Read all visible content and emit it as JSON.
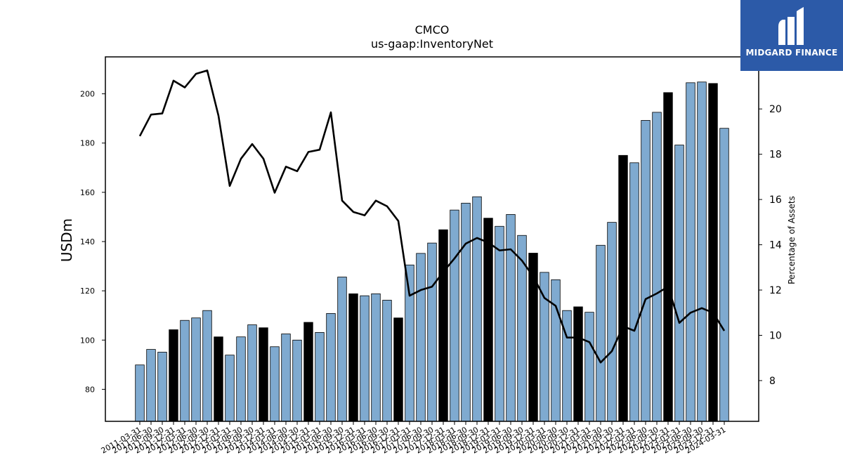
{
  "chart_data": {
    "type": "bar",
    "title": "CMCO",
    "subtitle": "us-gaap:InventoryNet",
    "ylabel": "USDm",
    "y2label": "Percentage of Assets",
    "ylim": [
      67,
      215
    ],
    "y2lim": [
      6.2,
      22.3
    ],
    "yticks": [
      80,
      100,
      120,
      140,
      160,
      180,
      200
    ],
    "y2ticks": [
      8,
      10,
      12,
      14,
      16,
      18,
      20
    ],
    "grid": false,
    "colors": {
      "bar": "#7faad0",
      "bar_highlight": "#000000",
      "line": "#000000"
    },
    "categories": [
      "2011-03-31",
      "2011-06-30",
      "2011-09-30",
      "2011-12-31",
      "2012-03-31",
      "2012-06-30",
      "2012-09-30",
      "2012-12-31",
      "2013-03-31",
      "2013-06-30",
      "2013-09-30",
      "2013-12-31",
      "2014-03-31",
      "2014-06-30",
      "2014-09-30",
      "2014-12-31",
      "2015-03-31",
      "2015-06-30",
      "2015-09-30",
      "2015-12-31",
      "2016-03-31",
      "2016-06-30",
      "2016-09-30",
      "2016-12-31",
      "2017-03-31",
      "2017-06-30",
      "2017-09-30",
      "2017-12-31",
      "2018-03-31",
      "2018-06-30",
      "2018-09-30",
      "2018-12-31",
      "2019-03-31",
      "2019-06-30",
      "2019-09-30",
      "2019-12-31",
      "2020-03-31",
      "2020-06-30",
      "2020-09-30",
      "2020-12-31",
      "2021-03-31",
      "2021-06-30",
      "2021-09-30",
      "2021-12-31",
      "2022-03-31",
      "2022-06-30",
      "2022-09-30",
      "2022-12-31",
      "2023-03-31",
      "2023-06-30",
      "2023-09-30",
      "2023-12-31",
      "2024-03-31"
    ],
    "xtick_labels": [
      "2011-03-31",
      "2011-06-30",
      "2011-09-30",
      "2011-12-31",
      "2012-03-31",
      "2012-06-30",
      "2012-09-30",
      "2012-12-31",
      "2013-03-31",
      "2013-06-30",
      "2013-09-30",
      "2013-12-31",
      "2014-03-31",
      "2014-06-30",
      "2014-09-30",
      "2014-12-31",
      "2015-03-31",
      "2015-06-30",
      "2015-09-30",
      "2015-12-31",
      "2016-03-31",
      "2016-06-30",
      "2016-09-30",
      "2016-12-31",
      "2017-03-31",
      "2017-06-30",
      "2017-09-30",
      "2017-12-31",
      "2018-03-31",
      "2018-06-30",
      "2018-09-30",
      "2018-12-31",
      "2019-03-31",
      "2019-06-30",
      "2019-09-30",
      "2019-12-31",
      "2020-03-31",
      "2020-06-30",
      "2020-09-30",
      "2020-12-31",
      "2021-03-31",
      "2021-06-30",
      "2021-09-30",
      "2021-12-31",
      "2022-03-31",
      "2022-06-30",
      "2022-09-30",
      "2022-12-31",
      "2023-03-31",
      "2023-06-30",
      "2023-09-30",
      "2023-12-31",
      "2024-03-31"
    ],
    "values": [
      89.9,
      96.2,
      95.1,
      104.2,
      108.0,
      109.0,
      112.0,
      101.3,
      93.9,
      101.3,
      106.2,
      105.0,
      97.3,
      102.5,
      100.0,
      107.2,
      103.1,
      110.8,
      125.6,
      118.8,
      118.0,
      118.8,
      116.2,
      109.0,
      130.5,
      135.2,
      139.4,
      144.8,
      152.8,
      155.6,
      158.2,
      149.5,
      146.2,
      151.0,
      142.5,
      135.3,
      127.5,
      124.5,
      112.0,
      113.5,
      111.3,
      138.5,
      147.8,
      175.0,
      172.0,
      189.2,
      192.5,
      200.5,
      179.2,
      204.5,
      204.8,
      204.2,
      186.0
    ],
    "highlight": [
      false,
      false,
      false,
      true,
      false,
      false,
      false,
      true,
      false,
      false,
      false,
      true,
      false,
      false,
      false,
      true,
      false,
      false,
      false,
      true,
      false,
      false,
      false,
      true,
      false,
      false,
      false,
      true,
      false,
      false,
      false,
      true,
      false,
      false,
      false,
      true,
      false,
      false,
      false,
      true,
      false,
      false,
      false,
      true,
      false,
      false,
      false,
      true,
      false,
      false,
      false,
      true,
      false
    ],
    "series": [
      {
        "name": "Percentage of Assets",
        "axis": "right",
        "values": [
          18.8,
          19.75,
          19.8,
          21.25,
          20.95,
          21.55,
          21.7,
          19.7,
          16.6,
          17.8,
          18.45,
          17.8,
          16.3,
          17.45,
          17.25,
          18.1,
          18.2,
          19.85,
          15.95,
          15.45,
          15.3,
          15.95,
          15.7,
          15.05,
          11.75,
          12.0,
          12.15,
          12.8,
          13.4,
          14.05,
          14.3,
          14.1,
          13.75,
          13.8,
          13.3,
          12.6,
          11.65,
          11.3,
          9.9,
          9.9,
          9.7,
          8.8,
          9.3,
          10.4,
          10.2,
          11.6,
          11.85,
          12.15,
          10.55,
          11.0,
          11.2,
          11.0,
          10.2
        ]
      }
    ]
  },
  "logo": {
    "text": "MIDGARD FINANCE"
  }
}
